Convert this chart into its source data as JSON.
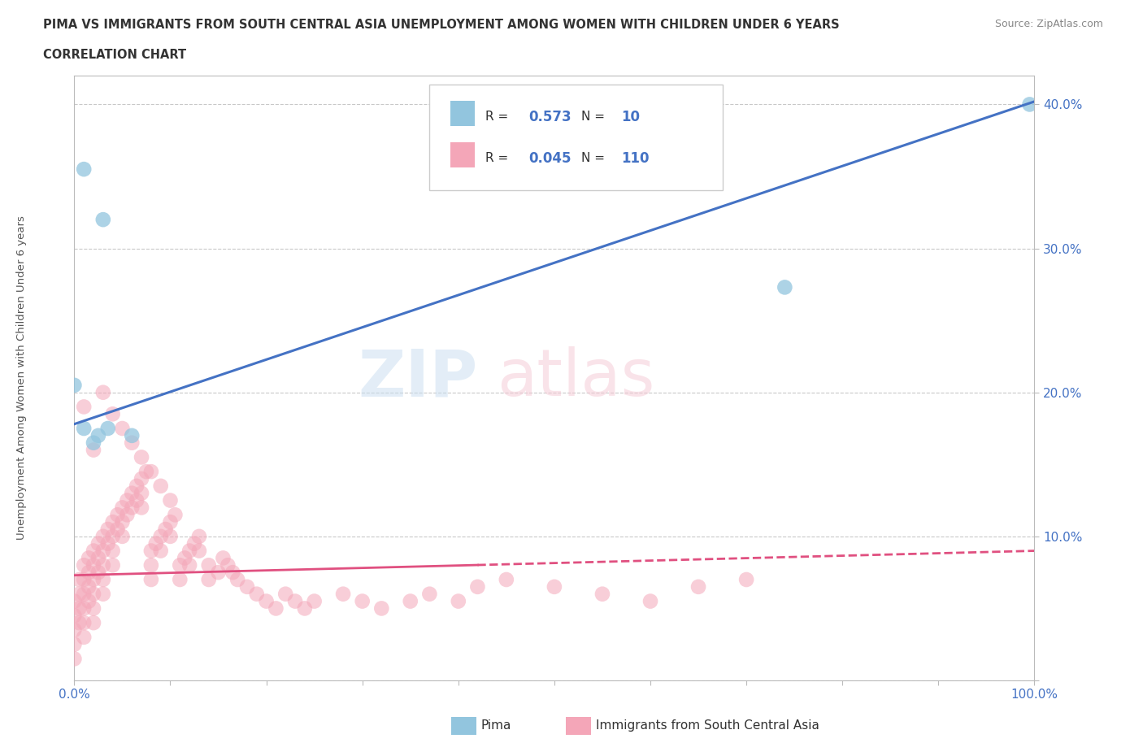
{
  "title_line1": "PIMA VS IMMIGRANTS FROM SOUTH CENTRAL ASIA UNEMPLOYMENT AMONG WOMEN WITH CHILDREN UNDER 6 YEARS",
  "title_line2": "CORRELATION CHART",
  "source_text": "Source: ZipAtlas.com",
  "ylabel": "Unemployment Among Women with Children Under 6 years",
  "xlim": [
    0,
    1.0
  ],
  "ylim": [
    0,
    0.42
  ],
  "xticks": [
    0.0,
    0.1,
    0.2,
    0.3,
    0.4,
    0.5,
    0.6,
    0.7,
    0.8,
    0.9,
    1.0
  ],
  "yticks": [
    0.0,
    0.1,
    0.2,
    0.3,
    0.4
  ],
  "pima_color": "#92c5de",
  "immigrants_color": "#f4a6b8",
  "pima_trend_color": "#4472c4",
  "immigrants_trend_color": "#e05080",
  "background_color": "#ffffff",
  "grid_color": "#bbbbbb",
  "legend_R_pima": "0.573",
  "legend_N_pima": "10",
  "legend_R_immigrants": "0.045",
  "legend_N_immigrants": "110",
  "pima_label": "Pima",
  "immigrants_label": "Immigrants from South Central Asia",
  "watermark_zip": "ZIP",
  "watermark_atlas": "atlas",
  "pima_x": [
    0.01,
    0.03,
    0.0,
    0.01,
    0.02,
    0.025,
    0.035,
    0.06,
    0.74,
    0.995
  ],
  "pima_y": [
    0.355,
    0.32,
    0.205,
    0.175,
    0.165,
    0.17,
    0.175,
    0.17,
    0.273,
    0.4
  ],
  "immigrants_x": [
    0.0,
    0.0,
    0.0,
    0.0,
    0.0,
    0.005,
    0.005,
    0.005,
    0.005,
    0.01,
    0.01,
    0.01,
    0.01,
    0.01,
    0.01,
    0.015,
    0.015,
    0.015,
    0.015,
    0.02,
    0.02,
    0.02,
    0.02,
    0.02,
    0.02,
    0.025,
    0.025,
    0.025,
    0.03,
    0.03,
    0.03,
    0.03,
    0.03,
    0.035,
    0.035,
    0.04,
    0.04,
    0.04,
    0.04,
    0.045,
    0.045,
    0.05,
    0.05,
    0.05,
    0.055,
    0.055,
    0.06,
    0.06,
    0.065,
    0.065,
    0.07,
    0.07,
    0.07,
    0.075,
    0.08,
    0.08,
    0.08,
    0.085,
    0.09,
    0.09,
    0.095,
    0.1,
    0.1,
    0.105,
    0.11,
    0.11,
    0.115,
    0.12,
    0.12,
    0.125,
    0.13,
    0.13,
    0.14,
    0.14,
    0.15,
    0.155,
    0.16,
    0.165,
    0.17,
    0.18,
    0.19,
    0.2,
    0.21,
    0.22,
    0.23,
    0.24,
    0.25,
    0.28,
    0.3,
    0.32,
    0.35,
    0.37,
    0.4,
    0.42,
    0.45,
    0.5,
    0.55,
    0.6,
    0.65,
    0.7,
    0.01,
    0.02,
    0.03,
    0.04,
    0.05,
    0.06,
    0.07,
    0.08,
    0.09,
    0.1
  ],
  "immigrants_y": [
    0.055,
    0.045,
    0.035,
    0.025,
    0.015,
    0.07,
    0.06,
    0.05,
    0.04,
    0.08,
    0.07,
    0.06,
    0.05,
    0.04,
    0.03,
    0.085,
    0.075,
    0.065,
    0.055,
    0.09,
    0.08,
    0.07,
    0.06,
    0.05,
    0.04,
    0.095,
    0.085,
    0.075,
    0.1,
    0.09,
    0.08,
    0.07,
    0.06,
    0.105,
    0.095,
    0.11,
    0.1,
    0.09,
    0.08,
    0.115,
    0.105,
    0.12,
    0.11,
    0.1,
    0.125,
    0.115,
    0.13,
    0.12,
    0.135,
    0.125,
    0.14,
    0.13,
    0.12,
    0.145,
    0.09,
    0.08,
    0.07,
    0.095,
    0.1,
    0.09,
    0.105,
    0.11,
    0.1,
    0.115,
    0.08,
    0.07,
    0.085,
    0.09,
    0.08,
    0.095,
    0.1,
    0.09,
    0.08,
    0.07,
    0.075,
    0.085,
    0.08,
    0.075,
    0.07,
    0.065,
    0.06,
    0.055,
    0.05,
    0.06,
    0.055,
    0.05,
    0.055,
    0.06,
    0.055,
    0.05,
    0.055,
    0.06,
    0.055,
    0.065,
    0.07,
    0.065,
    0.06,
    0.055,
    0.065,
    0.07,
    0.19,
    0.16,
    0.2,
    0.185,
    0.175,
    0.165,
    0.155,
    0.145,
    0.135,
    0.125
  ],
  "pima_trend_x0": 0.0,
  "pima_trend_y0": 0.178,
  "pima_trend_x1": 1.0,
  "pima_trend_y1": 0.402,
  "imm_trend_x0": 0.0,
  "imm_trend_y0": 0.073,
  "imm_trend_x1": 1.0,
  "imm_trend_y1": 0.09
}
